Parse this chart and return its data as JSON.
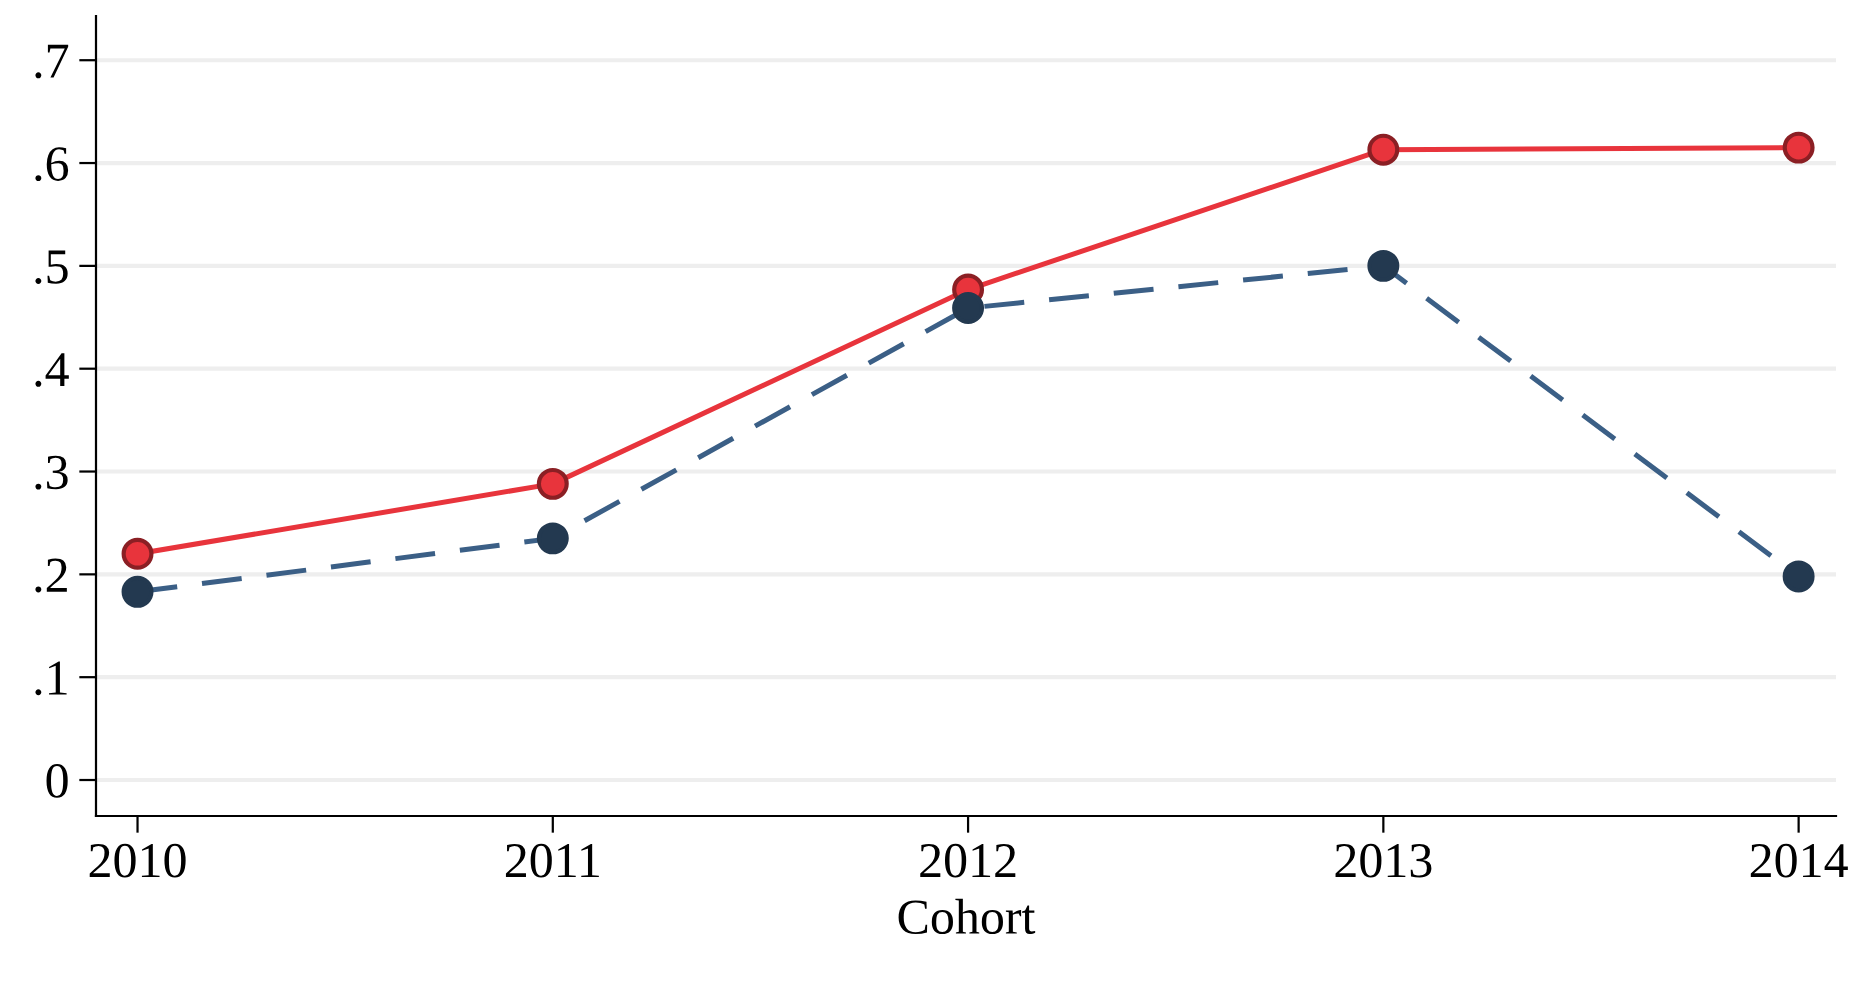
{
  "chart_data": {
    "type": "line",
    "xlabel": "Cohort",
    "x": [
      2010,
      2011,
      2012,
      2013,
      2014
    ],
    "series": [
      {
        "color": "#e8343c",
        "values": [
          0.22,
          0.288,
          0.477,
          0.613,
          0.615
        ],
        "line_style": "solid"
      },
      {
        "color": "#3b5f86",
        "values": [
          0.183,
          0.235,
          0.459,
          0.5,
          0.198
        ],
        "line_style": "dashed"
      }
    ],
    "xlim": [
      2009.9,
      2014.09
    ],
    "xticks": [
      2010,
      2011,
      2012,
      2013,
      2014
    ],
    "ylim": [
      -0.035,
      0.743
    ],
    "yticks": [
      0,
      {
        "value": 0.1,
        "label": ".1"
      },
      {
        "value": 0.2,
        "label": ".2"
      },
      {
        "value": 0.3,
        "label": ".3"
      },
      {
        "value": 0.4,
        "label": ".4"
      },
      {
        "value": 0.5,
        "label": ".5"
      },
      {
        "value": 0.6,
        "label": ".6"
      },
      {
        "value": 0.7,
        "label": ".7"
      }
    ],
    "grid": "y",
    "marker": "circle"
  }
}
